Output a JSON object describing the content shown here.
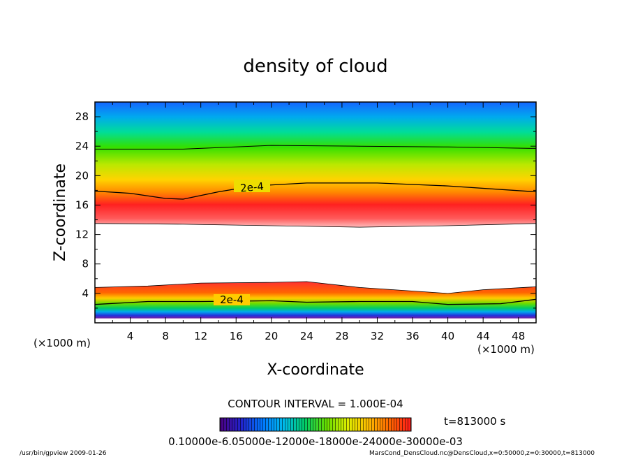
{
  "chart_data": {
    "type": "heatmap",
    "title": "density of cloud",
    "xlabel": "X-coordinate",
    "ylabel": "Z-coordinate",
    "x_unit_label": "(×1000 m)",
    "y_unit_label": "(×1000 m)",
    "xlim": [
      0,
      50
    ],
    "ylim": [
      0,
      30
    ],
    "x_ticks": [
      "4",
      "8",
      "12",
      "16",
      "20",
      "24",
      "28",
      "32",
      "36",
      "40",
      "44",
      "48"
    ],
    "y_ticks": [
      "4",
      "8",
      "12",
      "16",
      "20",
      "24",
      "28"
    ],
    "contour_label": "2e-4",
    "contour_interval_text": "CONTOUR INTERVAL = 1.000E-04",
    "time_text": "t=813000 s",
    "colorbar_labels_text": "0.10000e-6.05000e-12000e-18000e-24000e-30000e-03",
    "upper_layer": {
      "bottom": [
        [
          0,
          13.5
        ],
        [
          10,
          13.4
        ],
        [
          20,
          13.2
        ],
        [
          30,
          13.0
        ],
        [
          40,
          13.2
        ],
        [
          50,
          13.5
        ]
      ],
      "contour_2e4": [
        [
          0,
          17.9
        ],
        [
          4,
          17.6
        ],
        [
          8,
          16.9
        ],
        [
          10,
          16.8
        ],
        [
          14,
          17.8
        ],
        [
          18,
          18.6
        ],
        [
          24,
          19.0
        ],
        [
          32,
          19.0
        ],
        [
          40,
          18.6
        ],
        [
          50,
          17.8
        ]
      ],
      "contour_1e4": [
        [
          0,
          23.6
        ],
        [
          10,
          23.6
        ],
        [
          20,
          24.1
        ],
        [
          30,
          24.0
        ],
        [
          40,
          23.9
        ],
        [
          50,
          23.7
        ]
      ]
    },
    "lower_layer": {
      "top": [
        [
          0,
          4.8
        ],
        [
          6,
          5.0
        ],
        [
          12,
          5.4
        ],
        [
          20,
          5.5
        ],
        [
          24,
          5.6
        ],
        [
          30,
          4.8
        ],
        [
          40,
          4.0
        ],
        [
          44,
          4.5
        ],
        [
          50,
          4.9
        ]
      ],
      "contour_2e4": [
        [
          0,
          2.5
        ],
        [
          6,
          2.9
        ],
        [
          12,
          2.9
        ],
        [
          20,
          3.0
        ],
        [
          24,
          2.8
        ],
        [
          30,
          2.9
        ],
        [
          36,
          2.9
        ],
        [
          40,
          2.5
        ],
        [
          46,
          2.6
        ],
        [
          50,
          3.2
        ]
      ]
    },
    "colorbar": [
      "#4b0082",
      "#2222cc",
      "#0077ff",
      "#00bbee",
      "#00cc66",
      "#66dd00",
      "#ddee00",
      "#ffbb00",
      "#ff6600",
      "#ff1a1a"
    ]
  },
  "footer": {
    "left": "/usr/bin/gpview   2009-01-26",
    "right": "MarsCond_DensCloud.nc@DensCloud,x=0:50000,z=0:30000,t=813000"
  }
}
